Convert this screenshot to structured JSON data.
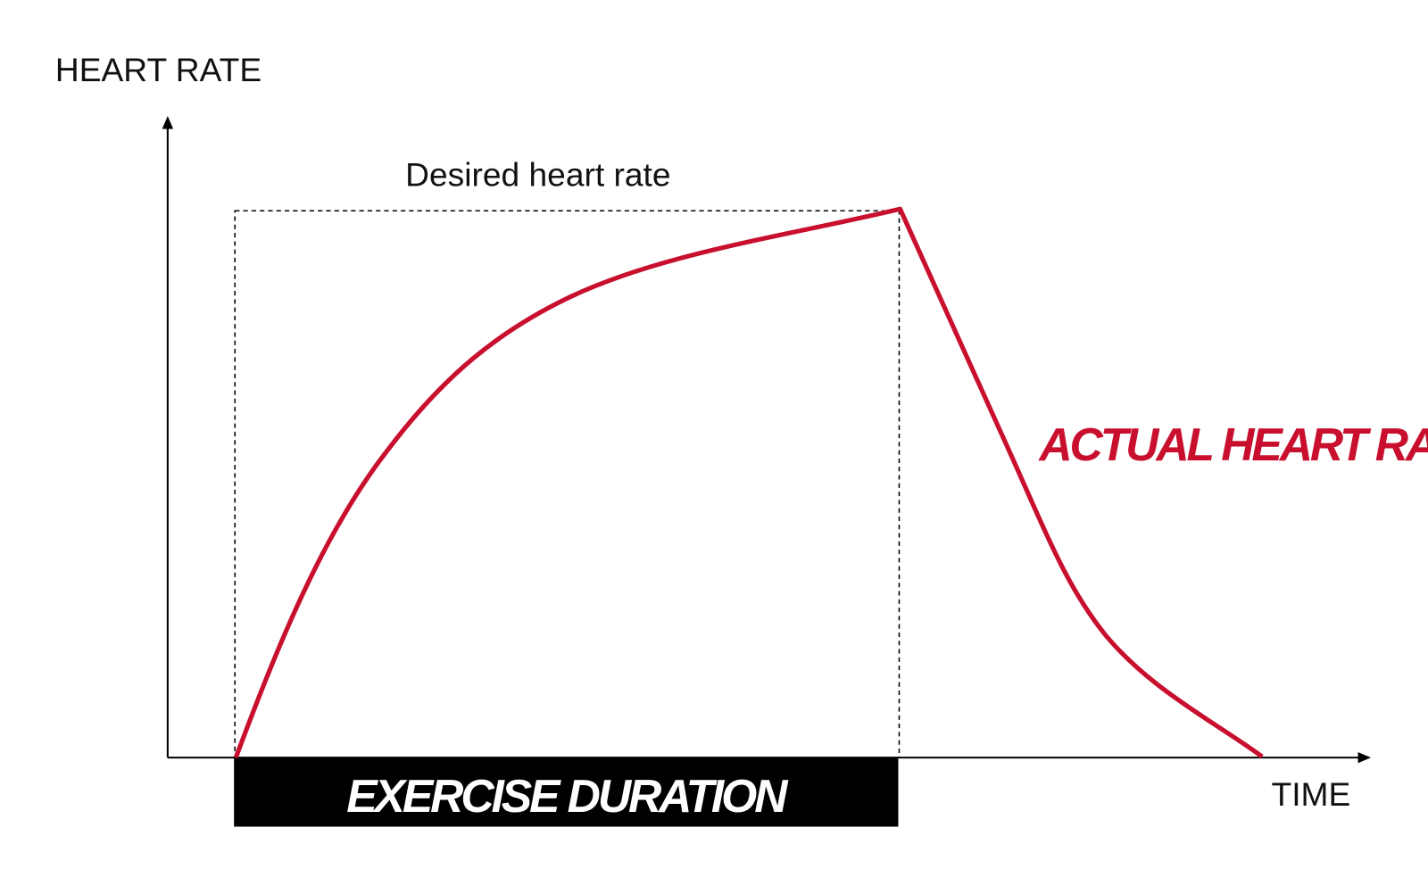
{
  "y_axis_label": "HEART RATE",
  "x_axis_label": "TIME",
  "desired_label": "Desired heart rate",
  "actual_label": "ACTUAL HEART RATE",
  "duration_label": "EXERCISE DURATION",
  "colors": {
    "actual": "#c8102e",
    "axis": "#000000",
    "duration_bar": "#000000",
    "duration_text": "#ffffff"
  }
}
